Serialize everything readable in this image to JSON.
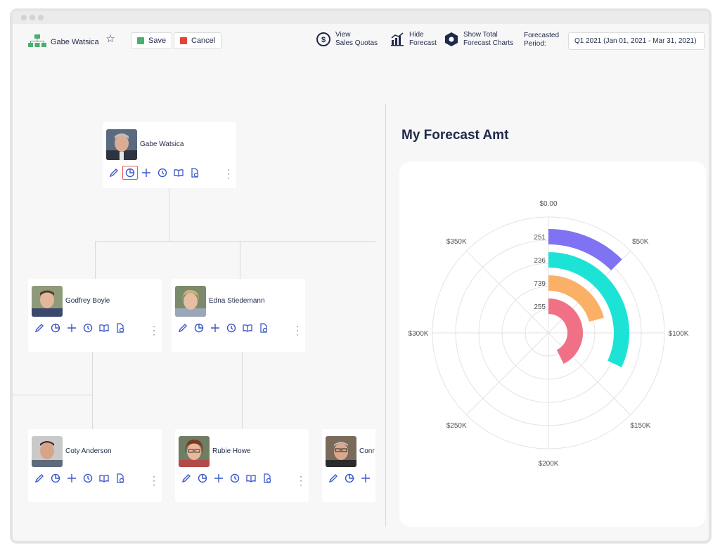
{
  "toolbar": {
    "user_name": "Gabe Watsica",
    "save_label": "Save",
    "cancel_label": "Cancel",
    "view_quotas": [
      "View",
      "Sales Quotas"
    ],
    "hide_forecast": [
      "Hide",
      "Forecast"
    ],
    "show_total": [
      "Show Total",
      "Forecast Charts"
    ],
    "period_label": [
      "Forecasted",
      "Period:"
    ],
    "period_value": "Q1 2021 (Jan 01, 2021 - Mar 31, 2021)"
  },
  "org": {
    "root": {
      "name": "Gabe Watsica"
    },
    "level1": [
      {
        "name": "Godfrey Boyle"
      },
      {
        "name": "Edna Stiedemann"
      }
    ],
    "level2": [
      {
        "name": "Coty Anderson"
      },
      {
        "name": "Rubie Howe"
      },
      {
        "name": "Conr"
      }
    ],
    "action_icons": [
      "edit-icon",
      "forecast-pie-icon",
      "add-icon",
      "history-icon",
      "quota-book-icon",
      "report-icon",
      "more-icon"
    ]
  },
  "colors": {
    "accent_blue": "#3a57c9",
    "save_green": "#4caf6d",
    "cancel_red": "#e0453a",
    "org_icon_green": "#4caf6d"
  },
  "chart_data": {
    "type": "radial-bar",
    "title": "My Forecast Amt",
    "angular_axis": {
      "min": 0,
      "max": 400000,
      "tick_labels": [
        "$0.00",
        "$50K",
        "$100K",
        "$150K",
        "$200K",
        "$250K",
        "$300K",
        "$350K"
      ]
    },
    "bars": [
      {
        "label": "251",
        "value": 50000,
        "color": "#7f73f3"
      },
      {
        "label": "236",
        "value": 128000,
        "color": "#1de3d6"
      },
      {
        "label": "739",
        "value": 83000,
        "color": "#fbb068"
      },
      {
        "label": "255",
        "value": 171000,
        "color": "#f07185"
      }
    ],
    "grid": true
  }
}
